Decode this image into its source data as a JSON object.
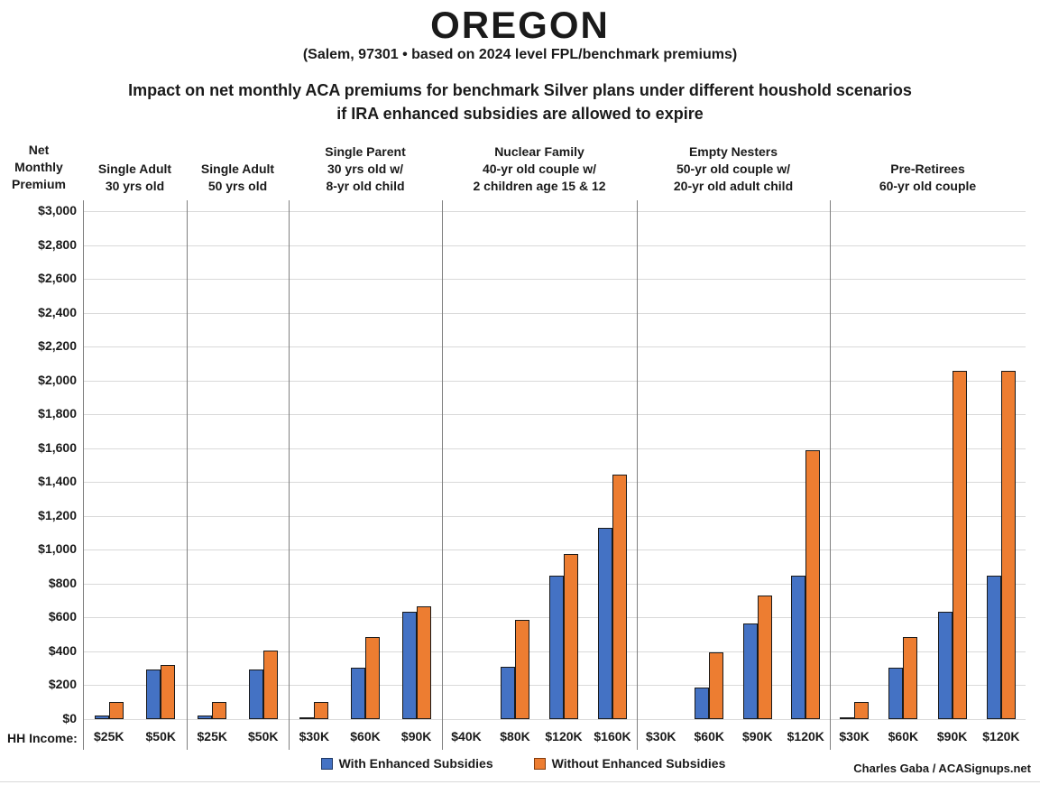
{
  "header": {
    "title": "OREGON",
    "subtitle": "(Salem, 97301 • based on 2024 level FPL/benchmark premiums)",
    "description_line1": "Impact on net monthly ACA premiums for benchmark Silver plans under different houshold scenarios",
    "description_line2": "if IRA enhanced subsidies are allowed to expire"
  },
  "axis": {
    "y_title": "Net\nMonthly\nPremium",
    "x_title": "HH Income:"
  },
  "legend": {
    "with_label": "With Enhanced Subsidies",
    "without_label": "Without Enhanced Subsidies"
  },
  "credit": "Charles Gaba / ACASignups.net",
  "colors": {
    "with_fill": "#4472C4",
    "with_border": "#1f3864",
    "without_fill": "#ED7D31",
    "without_border": "#843c0c",
    "bar_outline": "#1a1a1a",
    "gridline": "#d9d9d9",
    "divider": "#808080"
  },
  "chart_data": {
    "type": "bar",
    "title": "OREGON — Impact on net monthly ACA premiums for benchmark Silver plans under different houshold scenarios if IRA enhanced subsidies are allowed to expire",
    "xlabel": "HH Income",
    "ylabel": "Net Monthly Premium",
    "ylim": [
      0,
      3000
    ],
    "ytick_step": 200,
    "ytick_format": "$#,###",
    "grid": true,
    "legend_position": "bottom",
    "series_names": [
      "With Enhanced Subsidies",
      "Without Enhanced Subsidies"
    ],
    "groups": [
      {
        "header": [
          "Single Adult",
          "30 yrs old"
        ],
        "incomes": [
          "$25K",
          "$50K"
        ],
        "with_values": [
          20,
          295
        ],
        "without_values": [
          100,
          320
        ]
      },
      {
        "header": [
          "Single Adult",
          "50 yrs old"
        ],
        "incomes": [
          "$25K",
          "$50K"
        ],
        "with_values": [
          20,
          295
        ],
        "without_values": [
          100,
          405
        ]
      },
      {
        "header": [
          "Single Parent",
          "30 yrs old w/",
          "8-yr old child"
        ],
        "incomes": [
          "$30K",
          "$60K",
          "$90K"
        ],
        "with_values": [
          10,
          305,
          635
        ],
        "without_values": [
          100,
          485,
          665
        ]
      },
      {
        "header": [
          "Nuclear Family",
          "40-yr old couple w/",
          "2 children age 15 & 12"
        ],
        "incomes": [
          "$40K",
          "$80K",
          "$120K",
          "$160K"
        ],
        "with_values": [
          0,
          310,
          845,
          1130
        ],
        "without_values": [
          0,
          585,
          975,
          1445
        ]
      },
      {
        "header": [
          "Empty Nesters",
          "50-yr old couple w/",
          "20-yr old adult child"
        ],
        "incomes": [
          "$30K",
          "$60K",
          "$90K",
          "$120K"
        ],
        "with_values": [
          0,
          185,
          565,
          845
        ],
        "without_values": [
          0,
          395,
          730,
          1590
        ]
      },
      {
        "header": [
          "Pre-Retirees",
          "60-yr old couple"
        ],
        "incomes": [
          "$30K",
          "$60K",
          "$90K",
          "$120K"
        ],
        "with_values": [
          10,
          305,
          635,
          845
        ],
        "without_values": [
          100,
          485,
          2055,
          2055
        ]
      }
    ]
  }
}
